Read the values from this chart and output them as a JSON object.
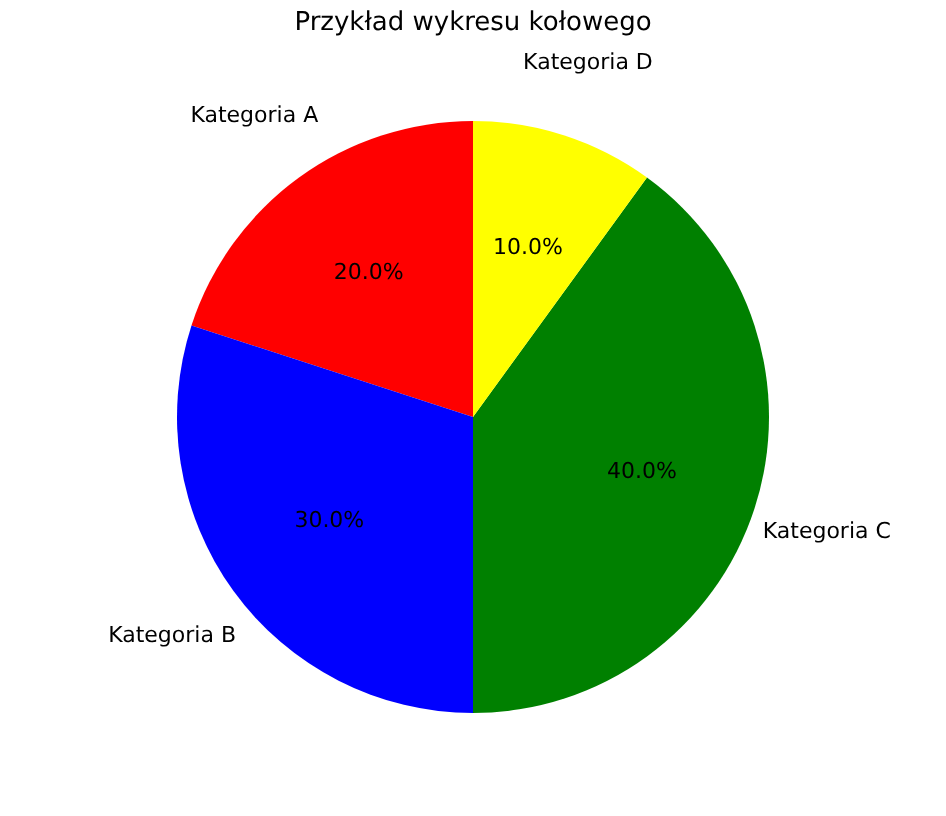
{
  "chart_data": {
    "type": "pie",
    "title": "Przykład wykresu kołowego",
    "categories": [
      "Kategoria A",
      "Kategoria B",
      "Kategoria C",
      "Kategoria D"
    ],
    "values": [
      20,
      30,
      40,
      10
    ],
    "colors": [
      "#ff0000",
      "#0000ff",
      "#008000",
      "#ffff00"
    ],
    "value_labels": [
      "20.0%",
      "30.0%",
      "40.0%",
      "10.0%"
    ],
    "legend": false
  }
}
